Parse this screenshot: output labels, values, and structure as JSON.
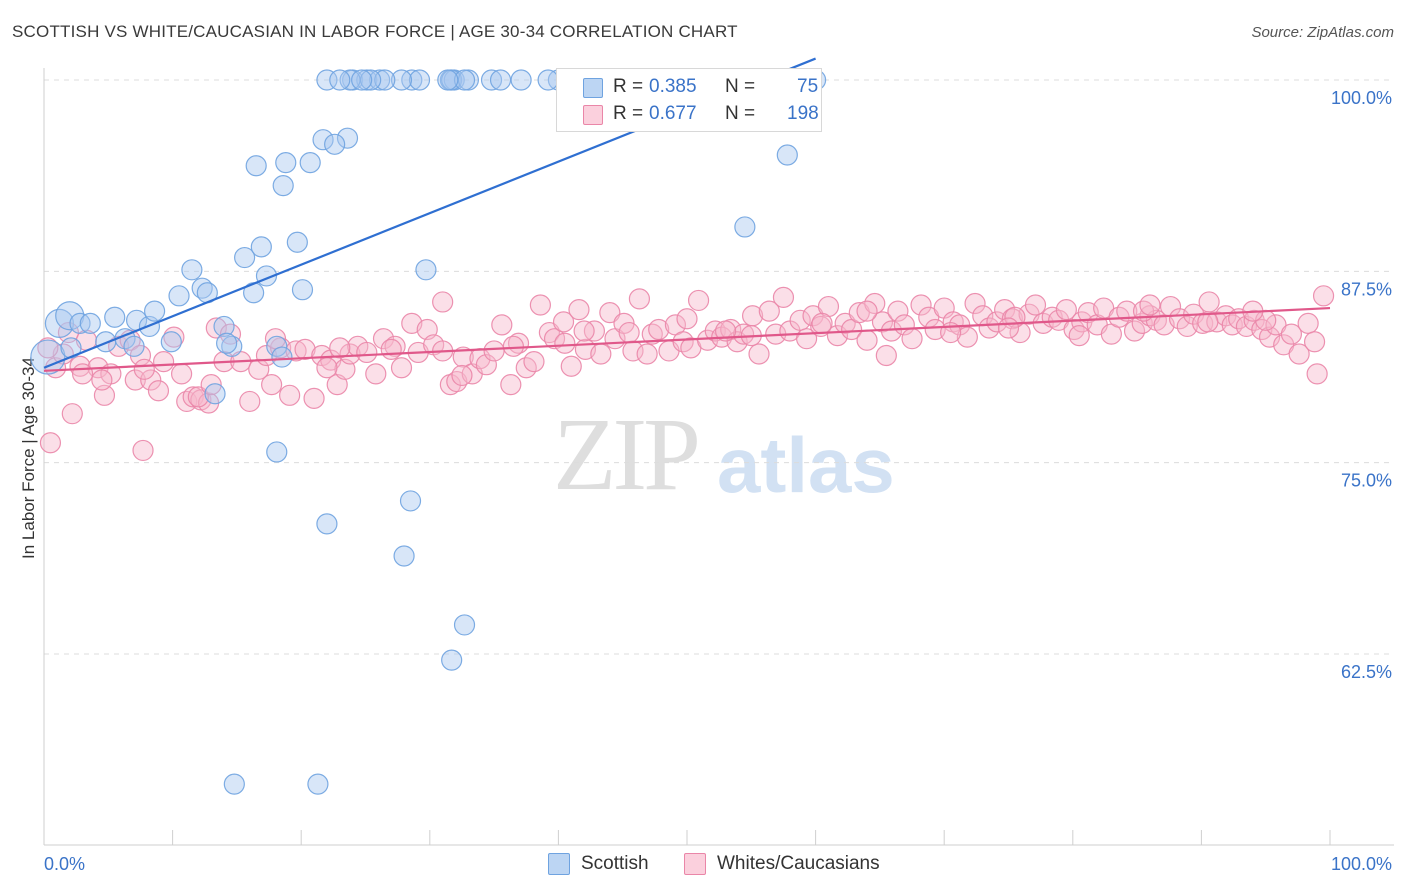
{
  "header": {
    "title": "SCOTTISH VS WHITE/CAUCASIAN IN LABOR FORCE | AGE 30-34 CORRELATION CHART",
    "source": "Source: ZipAtlas.com"
  },
  "watermark": {
    "zip": "ZIP",
    "atlas": "atlas"
  },
  "legend_box": {
    "rows": [
      {
        "r_label": "R =",
        "r_value": "0.385",
        "n_label": "N =",
        "n_value": "75",
        "color": "#a9c8ef"
      },
      {
        "r_label": "R =",
        "r_value": "0.677",
        "n_label": "N =",
        "n_value": "198",
        "color": "#f7b8cc"
      }
    ]
  },
  "bottom_legend": {
    "items": [
      {
        "label": "Scottish",
        "color": "#a9c8ef"
      },
      {
        "label": "Whites/Caucasians",
        "color": "#f7b8cc"
      }
    ]
  },
  "chart_data": {
    "type": "scatter",
    "title": "SCOTTISH VS WHITE/CAUCASIAN IN LABOR FORCE | AGE 30-34 CORRELATION CHART",
    "xlabel": "",
    "ylabel": "In Labor Force | Age 30-34",
    "xlim": [
      0,
      100
    ],
    "ylim": [
      50.5,
      102
    ],
    "x_tick_labels": [
      "0.0%",
      "100.0%"
    ],
    "y_ticks": [
      62.5,
      75.0,
      87.5,
      100.0
    ],
    "y_tick_labels": [
      "62.5%",
      "75.0%",
      "87.5%",
      "100.0%"
    ],
    "grid": true,
    "legend_position": "top-center",
    "series": [
      {
        "name": "Scottish",
        "color": "#6fa3e0",
        "fill": "#a9c8ef",
        "trend": {
          "x": [
            0,
            60
          ],
          "y": [
            81.2,
            101.4
          ],
          "color": "#2f6fd1"
        },
        "x": [
          0.3,
          1.2,
          2.0,
          2.8,
          3.6,
          4.8,
          5.5,
          6.3,
          7.0,
          7.2,
          8.2,
          8.6,
          9.9,
          10.5,
          11.5,
          12.3,
          13.3,
          14.0,
          14.6,
          12.7,
          14.2,
          15.6,
          16.3,
          17.3,
          16.9,
          18.6,
          16.5,
          18.8,
          19.7,
          20.1,
          20.7,
          18.1,
          23.6,
          21.7,
          22.6,
          22.0,
          24.0,
          25.1,
          26.1,
          23.8,
          23.0,
          28.6,
          31.6,
          31.9,
          31.7,
          33.0,
          34.8,
          42.0,
          41.8,
          40.0,
          39.2,
          37.1,
          35.5,
          32.7,
          31.4,
          29.2,
          27.8,
          26.5,
          25.4,
          24.7,
          60.0,
          59.0,
          57.8,
          54.5,
          22.0,
          28.5,
          32.7,
          31.7,
          29.7,
          28.0,
          18.1,
          21.3,
          14.8,
          18.5,
          2.1
        ],
        "y": [
          81.9,
          84.1,
          84.6,
          84.1,
          84.1,
          82.9,
          84.5,
          83.1,
          82.6,
          84.3,
          83.9,
          84.9,
          82.9,
          85.9,
          87.6,
          86.4,
          79.5,
          83.9,
          82.6,
          86.1,
          82.8,
          88.4,
          86.1,
          87.2,
          89.1,
          93.1,
          94.4,
          94.6,
          89.4,
          86.3,
          94.6,
          82.6,
          96.2,
          96.1,
          95.8,
          100.0,
          100.0,
          100.0,
          100.0,
          100.0,
          100.0,
          100.0,
          100.0,
          100.0,
          100.0,
          100.0,
          100.0,
          100.0,
          100.0,
          100.0,
          100.0,
          100.0,
          100.0,
          100.0,
          100.0,
          100.0,
          100.0,
          100.0,
          100.0,
          100.0,
          100.0,
          100.0,
          95.1,
          90.4,
          71.0,
          72.5,
          64.4,
          62.1,
          87.6,
          68.9,
          75.7,
          54.0,
          54.0,
          81.9,
          82.5
        ],
        "r": [
          17,
          14,
          14,
          10,
          10,
          10,
          10,
          10,
          10,
          10,
          10,
          10,
          10,
          10,
          10,
          10,
          10,
          10,
          10,
          10,
          10,
          10,
          10,
          10,
          10,
          10,
          10,
          10,
          10,
          10,
          10,
          10,
          10,
          10,
          10,
          10,
          10,
          10,
          10,
          10,
          10,
          10,
          10,
          10,
          10,
          10,
          10,
          10,
          10,
          10,
          10,
          10,
          10,
          10,
          10,
          10,
          10,
          10,
          10,
          10,
          10,
          10,
          10,
          10,
          10,
          10,
          10,
          10,
          10,
          10,
          10,
          10,
          10,
          10,
          10
        ]
      },
      {
        "name": "Whites/Caucasians",
        "color": "#ea86a8",
        "fill": "#f7b8cc",
        "trend": {
          "x": [
            0,
            100
          ],
          "y": [
            81.0,
            85.1
          ],
          "color": "#e0588a"
        },
        "x": [
          0.5,
          0.9,
          1.5,
          2.2,
          2.8,
          3.3,
          4.2,
          4.7,
          5.2,
          5.8,
          6.7,
          7.1,
          7.7,
          8.3,
          8.9,
          9.3,
          10.1,
          10.7,
          11.1,
          11.6,
          12.2,
          12.8,
          13.4,
          14.0,
          14.5,
          15.3,
          16.0,
          16.7,
          17.3,
          17.7,
          18.4,
          19.1,
          19.6,
          20.3,
          21.0,
          21.6,
          22.3,
          22.8,
          23.4,
          23.8,
          24.4,
          25.1,
          25.8,
          26.4,
          27.3,
          27.8,
          28.6,
          29.1,
          29.8,
          30.3,
          31.0,
          31.6,
          32.1,
          32.6,
          33.3,
          33.9,
          34.4,
          35.0,
          35.6,
          36.3,
          36.9,
          37.5,
          38.1,
          38.6,
          39.3,
          39.7,
          40.4,
          41.0,
          41.6,
          42.1,
          42.8,
          43.3,
          44.0,
          44.4,
          45.1,
          45.8,
          46.3,
          46.9,
          47.3,
          47.8,
          48.6,
          49.1,
          49.7,
          50.3,
          50.9,
          51.6,
          52.2,
          52.7,
          53.4,
          53.9,
          54.4,
          55.1,
          55.6,
          56.4,
          56.9,
          57.5,
          58.0,
          58.8,
          59.3,
          59.8,
          60.4,
          61.0,
          61.7,
          62.3,
          62.8,
          63.4,
          64.0,
          64.6,
          65.2,
          65.9,
          66.4,
          66.9,
          67.5,
          68.2,
          68.8,
          69.3,
          70.0,
          70.7,
          71.2,
          71.8,
          72.4,
          73.0,
          73.5,
          74.1,
          74.7,
          75.3,
          75.9,
          76.6,
          77.1,
          77.7,
          78.4,
          78.9,
          79.5,
          80.1,
          80.7,
          81.2,
          81.9,
          82.4,
          83.0,
          83.6,
          84.2,
          84.8,
          85.4,
          86.0,
          86.5,
          87.1,
          87.6,
          88.3,
          88.9,
          89.4,
          90.1,
          90.6,
          91.2,
          91.9,
          92.4,
          92.9,
          93.5,
          94.1,
          94.7,
          95.3,
          95.8,
          96.4,
          97.0,
          97.6,
          98.3,
          98.8,
          99.5,
          3.0,
          7.5,
          12.0,
          18.0,
          23.0,
          27.0,
          32.5,
          36.5,
          40.5,
          45.5,
          50.0,
          55.0,
          60.5,
          65.5,
          70.5,
          75.5,
          80.5,
          85.5,
          90.5,
          95.0,
          99.0,
          13.0,
          22.0,
          31.0,
          42.0,
          53.0,
          64.0,
          75.0,
          86.0,
          94.0,
          0.3,
          1.9,
          4.5,
          7.8
        ],
        "y": [
          76.3,
          81.2,
          82.1,
          78.2,
          81.3,
          83.0,
          81.2,
          79.4,
          80.8,
          82.6,
          83.0,
          80.4,
          75.8,
          80.4,
          79.7,
          81.6,
          83.2,
          80.8,
          79.0,
          79.3,
          79.1,
          78.9,
          83.8,
          81.6,
          83.4,
          81.6,
          79.0,
          81.1,
          82.0,
          80.1,
          82.5,
          79.4,
          82.3,
          82.4,
          79.2,
          82.0,
          81.7,
          80.1,
          81.1,
          82.1,
          82.6,
          82.2,
          80.8,
          83.1,
          82.6,
          81.2,
          84.1,
          82.2,
          83.7,
          82.7,
          85.5,
          80.1,
          80.3,
          81.9,
          80.8,
          81.8,
          81.4,
          82.3,
          84.0,
          80.1,
          82.8,
          81.2,
          81.6,
          85.3,
          83.5,
          83.1,
          84.2,
          81.3,
          85.0,
          82.4,
          83.6,
          82.1,
          84.8,
          83.1,
          84.1,
          82.3,
          85.7,
          82.1,
          83.4,
          83.7,
          82.3,
          84.0,
          82.9,
          82.5,
          85.6,
          83.0,
          83.6,
          83.2,
          83.7,
          82.9,
          83.4,
          84.6,
          82.1,
          84.9,
          83.4,
          85.8,
          83.6,
          84.3,
          83.1,
          84.6,
          83.9,
          85.2,
          83.3,
          84.1,
          83.7,
          84.8,
          83.0,
          85.4,
          84.2,
          83.6,
          84.9,
          84.0,
          83.1,
          85.3,
          84.5,
          83.7,
          85.1,
          84.2,
          84.0,
          83.2,
          85.4,
          84.6,
          83.8,
          84.2,
          85.0,
          84.4,
          83.5,
          84.7,
          85.3,
          84.1,
          84.5,
          84.3,
          85.0,
          83.7,
          84.2,
          84.8,
          84.0,
          85.1,
          83.4,
          84.5,
          84.9,
          83.6,
          84.1,
          84.6,
          84.3,
          84.0,
          85.2,
          84.4,
          83.9,
          84.7,
          84.1,
          85.5,
          84.2,
          84.6,
          84.0,
          84.4,
          83.9,
          84.3,
          83.7,
          83.2,
          84.0,
          82.7,
          83.4,
          82.1,
          84.1,
          82.9,
          85.9,
          80.8,
          82.0,
          79.3,
          83.1,
          82.5,
          82.4,
          80.7,
          82.6,
          82.8,
          83.5,
          84.4,
          83.3,
          84.1,
          82.0,
          83.5,
          84.5,
          83.3,
          84.9,
          84.2,
          84.3,
          80.8,
          80.1,
          81.2,
          82.3,
          83.6,
          83.6,
          84.9,
          83.8,
          85.3,
          84.9,
          82.5,
          83.5,
          80.4,
          81.1
        ],
        "r": 10
      }
    ]
  }
}
